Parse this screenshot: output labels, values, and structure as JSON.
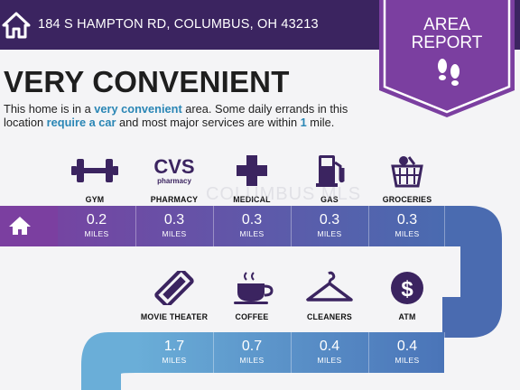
{
  "header": {
    "address": "184 S HAMPTON RD, COLUMBUS, OH 43213",
    "background": "#3b2460",
    "home_icon": "home-icon"
  },
  "badge": {
    "line1": "AREA",
    "line2": "REPORT",
    "color": "#7b3fa0",
    "icon": "footprints-icon"
  },
  "summary": {
    "headline": "VERY CONVENIENT",
    "desc_1": "This home is in a ",
    "desc_hl_1": "very convenient",
    "desc_2": " area. Some daily errands in this location ",
    "desc_hl_2": "require a car",
    "desc_3": " and most major services are within ",
    "desc_hl_3": "1",
    "desc_4": " mile.",
    "highlight_color": "#2a86b5"
  },
  "watermark": "COLUMBUS MLS",
  "row1": [
    {
      "label": "GYM",
      "icon": "dumbbell-icon",
      "distance": "0.2",
      "unit": "MILES"
    },
    {
      "label": "PHARMACY",
      "icon": "cvs-pharmacy-logo",
      "logo_text": "CVS",
      "logo_sub": "pharmacy",
      "distance": "0.3",
      "unit": "MILES"
    },
    {
      "label": "MEDICAL",
      "icon": "medical-cross-icon",
      "distance": "0.3",
      "unit": "MILES"
    },
    {
      "label": "GAS",
      "icon": "gas-pump-icon",
      "distance": "0.3",
      "unit": "MILES"
    },
    {
      "label": "GROCERIES",
      "icon": "grocery-basket-icon",
      "distance": "0.3",
      "unit": "MILES"
    }
  ],
  "row2": [
    {
      "label": "MOVIE THEATER",
      "icon": "movie-ticket-icon",
      "distance": "1.7",
      "unit": "MILES"
    },
    {
      "label": "COFFEE",
      "icon": "coffee-cup-icon",
      "distance": "0.7",
      "unit": "MILES"
    },
    {
      "label": "CLEANERS",
      "icon": "hanger-icon",
      "distance": "0.4",
      "unit": "MILES"
    },
    {
      "label": "ATM",
      "icon": "dollar-coin-icon",
      "distance": "0.4",
      "unit": "MILES"
    }
  ]
}
